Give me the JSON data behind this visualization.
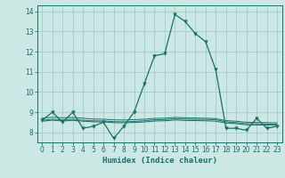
{
  "xlabel": "Humidex (Indice chaleur)",
  "background_color": "#cce8e4",
  "grid_color": "#aacfcc",
  "line_color": "#1a7068",
  "xlim": [
    -0.5,
    23.5
  ],
  "ylim": [
    7.5,
    14.3
  ],
  "yticks": [
    8,
    9,
    10,
    11,
    12,
    13,
    14
  ],
  "xticks": [
    0,
    1,
    2,
    3,
    4,
    5,
    6,
    7,
    8,
    9,
    10,
    11,
    12,
    13,
    14,
    15,
    16,
    17,
    18,
    19,
    20,
    21,
    22,
    23
  ],
  "x_main": [
    0,
    1,
    2,
    3,
    4,
    5,
    6,
    7,
    8,
    9,
    10,
    11,
    12,
    13,
    14,
    15,
    16,
    17,
    18,
    19,
    20,
    21,
    22,
    23
  ],
  "y_main": [
    8.6,
    9.0,
    8.5,
    9.0,
    8.2,
    8.3,
    8.5,
    7.7,
    8.3,
    9.0,
    10.4,
    11.8,
    11.9,
    13.85,
    13.5,
    12.9,
    12.5,
    11.1,
    8.2,
    8.2,
    8.1,
    8.7,
    8.2,
    8.3
  ],
  "x_trend1": [
    0,
    1,
    2,
    3,
    4,
    5,
    6,
    7,
    8,
    9,
    10,
    11,
    12,
    13,
    14,
    15,
    16,
    17,
    18,
    19,
    20,
    21,
    22,
    23
  ],
  "y_trend1": [
    8.6,
    8.65,
    8.62,
    8.65,
    8.6,
    8.57,
    8.56,
    8.53,
    8.52,
    8.54,
    8.57,
    8.62,
    8.63,
    8.67,
    8.65,
    8.64,
    8.64,
    8.62,
    8.52,
    8.48,
    8.43,
    8.42,
    8.41,
    8.4
  ],
  "x_trend2": [
    0,
    1,
    2,
    3,
    4,
    5,
    6,
    7,
    8,
    9,
    10,
    11,
    12,
    13,
    14,
    15,
    16,
    17,
    18,
    19,
    20,
    21,
    22,
    23
  ],
  "y_trend2": [
    8.7,
    8.75,
    8.72,
    8.74,
    8.7,
    8.66,
    8.65,
    8.62,
    8.61,
    8.63,
    8.65,
    8.69,
    8.7,
    8.74,
    8.72,
    8.71,
    8.7,
    8.68,
    8.58,
    8.55,
    8.5,
    8.49,
    8.48,
    8.47
  ],
  "x_trend3": [
    0,
    1,
    2,
    3,
    4,
    5,
    6,
    7,
    8,
    9,
    10,
    11,
    12,
    13,
    14,
    15,
    16,
    17,
    18,
    19,
    20,
    21,
    22,
    23
  ],
  "y_trend3": [
    8.55,
    8.6,
    8.56,
    8.59,
    8.55,
    8.52,
    8.51,
    8.48,
    8.47,
    8.49,
    8.51,
    8.56,
    8.57,
    8.61,
    8.59,
    8.58,
    8.57,
    8.55,
    8.46,
    8.43,
    8.37,
    8.36,
    8.36,
    8.35
  ]
}
